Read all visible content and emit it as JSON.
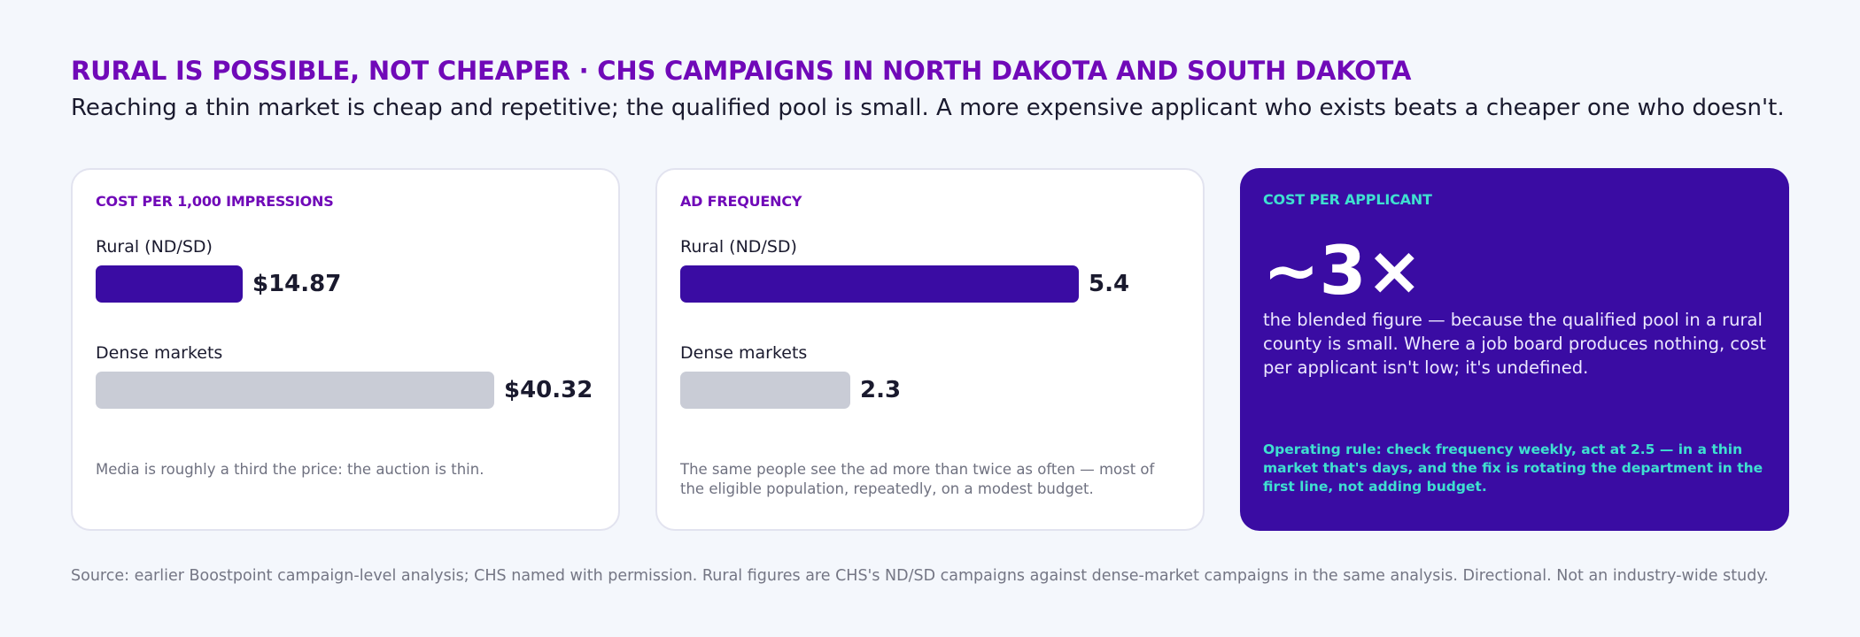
{
  "header": {
    "title": "RURAL IS POSSIBLE, NOT CHEAPER · CHS CAMPAIGNS IN NORTH DAKOTA AND SOUTH DAKOTA",
    "subtitle": "Reaching a thin market is cheap and repetitive; the qualified pool is small. A more expensive applicant who exists beats a cheaper one who doesn't."
  },
  "colors": {
    "title": "#7009b8",
    "rural_bar": "#3a0ca3",
    "dense_bar": "#c9ccd6",
    "dark_card": "#3a0ca3",
    "accent_teal": "#3fe0d0"
  },
  "chart_data": [
    {
      "type": "bar",
      "orientation": "horizontal",
      "title": "COST PER 1,000 IMPRESSIONS",
      "categories": [
        "Rural (ND/SD)",
        "Dense markets"
      ],
      "values": [
        14.87,
        40.32
      ],
      "value_labels": [
        "$14.87",
        "$40.32"
      ],
      "bar_colors": [
        "#3a0ca3",
        "#c9ccd6"
      ],
      "xlim": [
        0,
        40.32
      ],
      "note": "Media is roughly a third the price: the auction is thin."
    },
    {
      "type": "bar",
      "orientation": "horizontal",
      "title": "AD FREQUENCY",
      "categories": [
        "Rural (ND/SD)",
        "Dense markets"
      ],
      "values": [
        5.4,
        2.3
      ],
      "value_labels": [
        "5.4",
        "2.3"
      ],
      "bar_colors": [
        "#3a0ca3",
        "#c9ccd6"
      ],
      "xlim": [
        0,
        5.4
      ],
      "note": "The same people see the ad more than twice as often — most of the eligible population, repeatedly, on a modest budget."
    }
  ],
  "highlight_card": {
    "title": "COST PER APPLICANT",
    "stat": "~3×",
    "description": "the blended figure — because the qualified pool in a rural county is small. Where a job board produces nothing, cost per applicant isn't low; it's undefined.",
    "rule": "Operating rule: check frequency weekly, act at 2.5 — in a thin market that's days, and the fix is rotating the department in the first line, not adding budget."
  },
  "footer": {
    "source": "Source: earlier Boostpoint campaign-level analysis; CHS named with permission. Rural figures are CHS's ND/SD campaigns against dense-market campaigns in the same analysis. Directional. Not an industry-wide study."
  }
}
